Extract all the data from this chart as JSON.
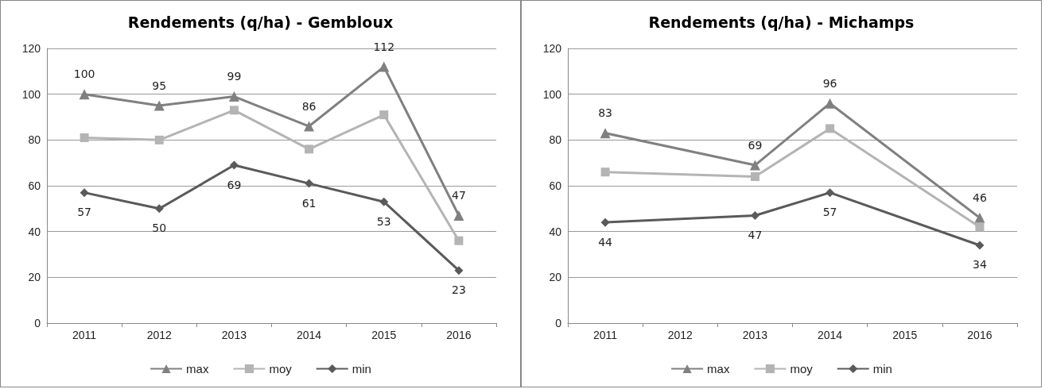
{
  "chart_data": [
    {
      "type": "line",
      "title": "Rendements (q/ha) - Gembloux",
      "categories": [
        "2011",
        "2012",
        "2013",
        "2014",
        "2015",
        "2016"
      ],
      "ylim": [
        0,
        120
      ],
      "yticks": [
        0,
        20,
        40,
        60,
        80,
        100,
        120
      ],
      "grid": "y",
      "legend": "bottom",
      "series": [
        {
          "name": "max",
          "color": "#808080",
          "marker": "triangle",
          "values": [
            100,
            95,
            99,
            86,
            112,
            47
          ],
          "value_labels": [
            "100",
            "95",
            "99",
            "86",
            "112",
            "47"
          ]
        },
        {
          "name": "moy",
          "color": "#b4b4b4",
          "marker": "square",
          "values": [
            81,
            80,
            93,
            76,
            91,
            36
          ]
        },
        {
          "name": "min",
          "color": "#5a5a5a",
          "marker": "diamond",
          "values": [
            57,
            50,
            69,
            61,
            53,
            23
          ],
          "value_labels": [
            "57",
            "50",
            "69",
            "61",
            "53",
            "23"
          ]
        }
      ]
    },
    {
      "type": "line",
      "title": "Rendements (q/ha) - Michamps",
      "categories": [
        "2011",
        "2012",
        "2013",
        "2014",
        "2015",
        "2016"
      ],
      "ylim": [
        0,
        120
      ],
      "yticks": [
        0,
        20,
        40,
        60,
        80,
        100,
        120
      ],
      "grid": "y",
      "legend": "bottom",
      "series": [
        {
          "name": "max",
          "color": "#808080",
          "marker": "triangle",
          "values": [
            83,
            null,
            69,
            96,
            null,
            46
          ],
          "value_labels": [
            "83",
            null,
            "69",
            "96",
            null,
            "46"
          ]
        },
        {
          "name": "moy",
          "color": "#b4b4b4",
          "marker": "square",
          "values": [
            66,
            null,
            64,
            85,
            null,
            42
          ]
        },
        {
          "name": "min",
          "color": "#5a5a5a",
          "marker": "diamond",
          "values": [
            44,
            null,
            47,
            57,
            null,
            34
          ],
          "value_labels": [
            "44",
            null,
            "47",
            "57",
            null,
            "34"
          ]
        }
      ]
    }
  ]
}
